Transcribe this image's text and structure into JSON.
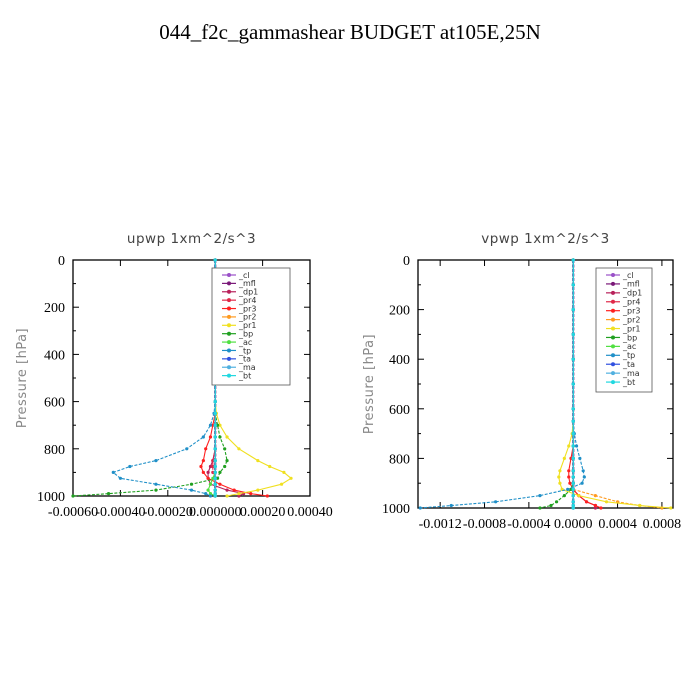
{
  "figure": {
    "title": "044_f2c_gammashear  BUDGET at105E,25N"
  },
  "chart_data": [
    {
      "type": "line",
      "title": "upwp   1xm^2/s^3",
      "ylabel": "Pressure [hPa]",
      "ylim": [
        1000,
        0
      ],
      "xlim": [
        -0.0006,
        0.0004
      ],
      "yticks": [
        0,
        200,
        400,
        600,
        800,
        1000
      ],
      "xticks": [
        -0.0006,
        -0.0004,
        -0.0002,
        0.0,
        0.0002,
        0.0004
      ],
      "xtick_labels": [
        "-0.00060",
        "-0.00040",
        "-0.00020",
        "0.000000",
        "0.00020",
        "0.00040"
      ],
      "legend_position": "top-right",
      "y": [
        0,
        100,
        200,
        300,
        400,
        500,
        600,
        650,
        700,
        750,
        800,
        850,
        875,
        900,
        925,
        950,
        975,
        990,
        1000
      ],
      "series": [
        {
          "name": "_cl",
          "color": "#9a50c8",
          "values": [
            0,
            0,
            0,
            0,
            0,
            0,
            0,
            0,
            0,
            0,
            0,
            0,
            0,
            0,
            0,
            0,
            0,
            0,
            0
          ]
        },
        {
          "name": "_mfl",
          "color": "#7a1878",
          "values": [
            0,
            0,
            0,
            0,
            0,
            0,
            0,
            0,
            0,
            0,
            0,
            0,
            0,
            0,
            0,
            0,
            0,
            0,
            0
          ]
        },
        {
          "name": "_dp1",
          "color": "#b8205a",
          "values": [
            0,
            0,
            0,
            0,
            0,
            0,
            0,
            0,
            0,
            0,
            0,
            -1e-05,
            -2e-05,
            -3e-05,
            -3e-05,
            -2e-05,
            5e-05,
            0.00012,
            0.0001
          ]
        },
        {
          "name": "_pr4",
          "color": "#e02848",
          "values": [
            0,
            0,
            0,
            0,
            0,
            0,
            0,
            0,
            0,
            0,
            0,
            -1e-05,
            -1e-05,
            -1e-05,
            0,
            0,
            0,
            0,
            0
          ]
        },
        {
          "name": "_pr3",
          "color": "#ff2020",
          "values": [
            0,
            0,
            0,
            0,
            0,
            0,
            0,
            0,
            -1e-05,
            -2e-05,
            -4e-05,
            -5e-05,
            -6e-05,
            -5e-05,
            -3e-05,
            2e-05,
            8e-05,
            0.00015,
            0.00022
          ]
        },
        {
          "name": "_pr2",
          "color": "#ff9a20",
          "values": [
            0,
            0,
            0,
            0,
            0,
            0,
            0,
            0,
            0,
            0,
            0,
            0,
            0,
            0,
            0,
            0,
            0,
            0,
            0
          ]
        },
        {
          "name": "_pr1",
          "color": "#f0e020",
          "values": [
            0,
            0,
            0,
            0,
            0,
            0,
            0,
            5e-06,
            2e-05,
            5e-05,
            0.0001,
            0.00018,
            0.00023,
            0.00029,
            0.00032,
            0.00028,
            0.00018,
            0.0001,
            5e-05
          ]
        },
        {
          "name": "_bp",
          "color": "#20a020",
          "values": [
            0,
            0,
            0,
            0,
            0,
            0,
            0,
            0,
            1e-05,
            2e-05,
            4e-05,
            5e-05,
            4e-05,
            2e-05,
            1e-05,
            -0.0001,
            -0.00025,
            -0.00045,
            -0.0006
          ]
        },
        {
          "name": "_ac",
          "color": "#50e040",
          "values": [
            0,
            0,
            0,
            0,
            0,
            0,
            0,
            0,
            0,
            0,
            0,
            0,
            0,
            0,
            -1e-05,
            -2e-05,
            -3e-05,
            -2e-05,
            0
          ]
        },
        {
          "name": "_tp",
          "color": "#2090c8",
          "values": [
            0,
            0,
            0,
            0,
            0,
            0,
            0,
            -5e-06,
            -2e-05,
            -5e-05,
            -0.00012,
            -0.00025,
            -0.00036,
            -0.00043,
            -0.0004,
            -0.00025,
            -0.0001,
            -4e-05,
            -2e-05
          ]
        },
        {
          "name": "_ta",
          "color": "#3050e0",
          "values": [
            0,
            0,
            0,
            0,
            0,
            0,
            0,
            0,
            0,
            0,
            0,
            0,
            0,
            0,
            0,
            0,
            0,
            0,
            0
          ]
        },
        {
          "name": "_ma",
          "color": "#50b0e0",
          "values": [
            0,
            0,
            0,
            0,
            0,
            0,
            0,
            0,
            0,
            0,
            0,
            0,
            0,
            0,
            0,
            0,
            0,
            0,
            0
          ]
        },
        {
          "name": "_bt",
          "color": "#20d8e0",
          "values": [
            0,
            0,
            0,
            0,
            0,
            0,
            0,
            0,
            0,
            0,
            0,
            0,
            0,
            0,
            0,
            0,
            0,
            0,
            0
          ]
        }
      ]
    },
    {
      "type": "line",
      "title": "vpwp   1xm^2/s^3",
      "ylabel": "Pressure [hPa]",
      "ylim": [
        1000,
        0
      ],
      "xlim": [
        -0.0014,
        0.0009
      ],
      "yticks": [
        0,
        200,
        400,
        600,
        800,
        1000
      ],
      "xticks": [
        -0.0012,
        -0.0008,
        -0.0004,
        0.0,
        0.0004,
        0.0008
      ],
      "xtick_labels": [
        "-0.0012",
        "-0.0008",
        "-0.0004",
        "0.0000",
        "0.0004",
        "0.0008"
      ],
      "legend_position": "top-right",
      "y": [
        0,
        100,
        200,
        300,
        400,
        500,
        600,
        650,
        700,
        750,
        800,
        850,
        875,
        900,
        925,
        950,
        975,
        990,
        1000
      ],
      "series": [
        {
          "name": "_cl",
          "color": "#9a50c8",
          "values": [
            0,
            0,
            0,
            0,
            0,
            0,
            0,
            0,
            0,
            0,
            0,
            0,
            0,
            0,
            0,
            0,
            0,
            0,
            0
          ]
        },
        {
          "name": "_mfl",
          "color": "#7a1878",
          "values": [
            0,
            0,
            0,
            0,
            0,
            0,
            0,
            0,
            0,
            0,
            0,
            0,
            0,
            0,
            0,
            0,
            0,
            0,
            0
          ]
        },
        {
          "name": "_dp1",
          "color": "#b8205a",
          "values": [
            0,
            0,
            0,
            0,
            0,
            0,
            0,
            0,
            0,
            0,
            0,
            0,
            0,
            0,
            0,
            5e-05,
            0.00012,
            0.0002,
            0.0002
          ]
        },
        {
          "name": "_pr4",
          "color": "#e02848",
          "values": [
            0,
            0,
            0,
            0,
            0,
            0,
            0,
            0,
            0,
            0,
            0,
            0,
            0,
            0,
            0,
            0,
            0,
            0,
            0
          ]
        },
        {
          "name": "_pr3",
          "color": "#ff2020",
          "values": [
            0,
            0,
            0,
            0,
            0,
            0,
            0,
            0,
            0,
            0,
            -2e-05,
            -4e-05,
            -4e-05,
            -3e-05,
            0,
            5e-05,
            0.00012,
            0.0002,
            0.00025
          ]
        },
        {
          "name": "_pr2",
          "color": "#ff9a20",
          "values": [
            0,
            0,
            0,
            0,
            0,
            0,
            0,
            0,
            0,
            0,
            0,
            0,
            0,
            0,
            0,
            0.0002,
            0.0004,
            0.0006,
            0.0008
          ]
        },
        {
          "name": "_pr1",
          "color": "#f0e020",
          "values": [
            0,
            0,
            0,
            0,
            0,
            0,
            0,
            0,
            -1e-05,
            -4e-05,
            -8e-05,
            -0.00012,
            -0.00013,
            -0.00012,
            -0.0001,
            5e-05,
            0.0003,
            0.0006,
            0.00088
          ]
        },
        {
          "name": "_bp",
          "color": "#20a020",
          "values": [
            0,
            0,
            0,
            0,
            0,
            0,
            0,
            0,
            0,
            0,
            0,
            0,
            0,
            0,
            -2e-05,
            -8e-05,
            -0.00015,
            -0.0002,
            -0.0003
          ]
        },
        {
          "name": "_ac",
          "color": "#50e040",
          "values": [
            0,
            0,
            0,
            0,
            0,
            0,
            0,
            0,
            0,
            0,
            0,
            0,
            0,
            0,
            0,
            0,
            0,
            0,
            0
          ]
        },
        {
          "name": "_tp",
          "color": "#2090c8",
          "values": [
            0,
            0,
            0,
            0,
            0,
            0,
            0,
            0,
            1e-05,
            3e-05,
            6e-05,
            9e-05,
            0.0001,
            8e-05,
            -5e-05,
            -0.0003,
            -0.0007,
            -0.0011,
            -0.00138
          ]
        },
        {
          "name": "_ta",
          "color": "#3050e0",
          "values": [
            0,
            0,
            0,
            0,
            0,
            0,
            0,
            0,
            0,
            0,
            0,
            0,
            0,
            0,
            0,
            0,
            0,
            0,
            0
          ]
        },
        {
          "name": "_ma",
          "color": "#50b0e0",
          "values": [
            0,
            0,
            0,
            0,
            0,
            0,
            0,
            0,
            0,
            0,
            0,
            0,
            0,
            0,
            0,
            0,
            0,
            0,
            0
          ]
        },
        {
          "name": "_bt",
          "color": "#20d8e0",
          "values": [
            0,
            0,
            0,
            0,
            0,
            0,
            0,
            0,
            0,
            0,
            0,
            0,
            0,
            0,
            0,
            0,
            0,
            0,
            0
          ]
        }
      ]
    }
  ]
}
